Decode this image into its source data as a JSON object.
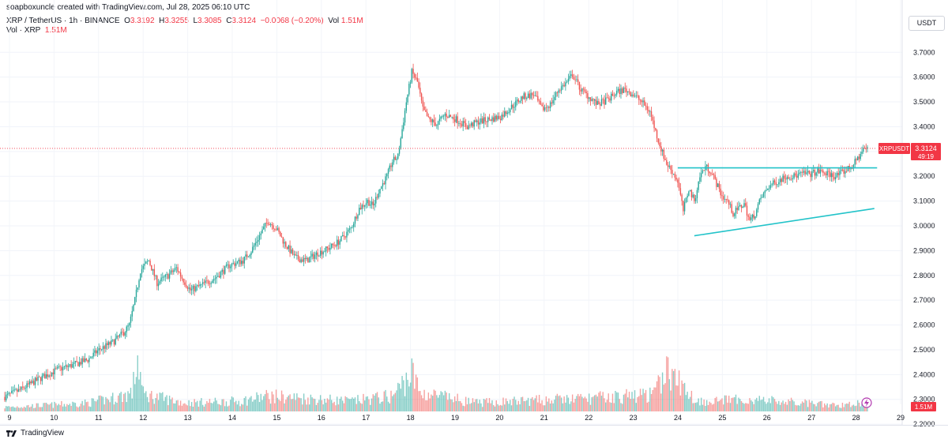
{
  "header": {
    "credit": "soapboxuncle created with TradingView.com, Jul 28, 2025 06:10 UTC",
    "symbol_line": "XRP / TetherUS · 1h · BINANCE",
    "open_label": "O",
    "open": "3.3192",
    "high_label": "H",
    "high": "3.3255",
    "low_label": "L",
    "low": "3.3085",
    "close_label": "C",
    "close": "3.3124",
    "change": "−0.0068 (−0.20%)",
    "vol_label": "Vol",
    "vol_value": "1.51M",
    "vol_line_label": "Vol · XRP",
    "vol_line_value": "1.51M"
  },
  "currency": "USDT",
  "footer": {
    "brand": "TradingView"
  },
  "colors": {
    "up": "#26a69a",
    "down": "#ef5350",
    "trendline": "#22c3c9",
    "price_tag": "#f23645"
  },
  "chart_data": {
    "type": "candlestick",
    "ylim": [
      2.28,
      3.72
    ],
    "y_ticks": [
      "3.7000",
      "3.6000",
      "3.5000",
      "3.4000",
      "3.3000",
      "3.2000",
      "3.1000",
      "3.0000",
      "2.9000",
      "2.8000",
      "2.7000",
      "2.6000",
      "2.5000",
      "2.4000",
      "2.3000",
      "2.2000"
    ],
    "x_ticks": [
      "9",
      "10",
      "11",
      "12",
      "13",
      "14",
      "15",
      "16",
      "17",
      "18",
      "19",
      "20",
      "21",
      "22",
      "23",
      "24",
      "25",
      "26",
      "27",
      "28",
      "29"
    ],
    "anchors": [
      [
        0,
        2.31
      ],
      [
        12,
        2.34
      ],
      [
        24,
        2.38
      ],
      [
        38,
        2.42
      ],
      [
        50,
        2.44
      ],
      [
        60,
        2.46
      ],
      [
        68,
        2.5
      ],
      [
        78,
        2.53
      ],
      [
        86,
        2.57
      ],
      [
        90,
        2.6
      ],
      [
        94,
        2.7
      ],
      [
        98,
        2.82
      ],
      [
        104,
        2.86
      ],
      [
        110,
        2.77
      ],
      [
        118,
        2.8
      ],
      [
        124,
        2.83
      ],
      [
        128,
        2.79
      ],
      [
        134,
        2.74
      ],
      [
        142,
        2.76
      ],
      [
        152,
        2.79
      ],
      [
        162,
        2.84
      ],
      [
        172,
        2.86
      ],
      [
        178,
        2.9
      ],
      [
        186,
        2.98
      ],
      [
        190,
        3.02
      ],
      [
        196,
        2.99
      ],
      [
        202,
        2.93
      ],
      [
        210,
        2.87
      ],
      [
        218,
        2.86
      ],
      [
        226,
        2.89
      ],
      [
        234,
        2.91
      ],
      [
        242,
        2.94
      ],
      [
        250,
        2.99
      ],
      [
        256,
        3.07
      ],
      [
        262,
        3.1
      ],
      [
        266,
        3.08
      ],
      [
        270,
        3.14
      ],
      [
        276,
        3.2
      ],
      [
        280,
        3.26
      ],
      [
        284,
        3.28
      ],
      [
        290,
        3.5
      ],
      [
        294,
        3.62
      ],
      [
        298,
        3.58
      ],
      [
        302,
        3.47
      ],
      [
        306,
        3.43
      ],
      [
        312,
        3.41
      ],
      [
        318,
        3.45
      ],
      [
        326,
        3.43
      ],
      [
        334,
        3.4
      ],
      [
        342,
        3.42
      ],
      [
        350,
        3.43
      ],
      [
        358,
        3.44
      ],
      [
        366,
        3.48
      ],
      [
        374,
        3.52
      ],
      [
        382,
        3.53
      ],
      [
        388,
        3.47
      ],
      [
        394,
        3.49
      ],
      [
        400,
        3.55
      ],
      [
        406,
        3.58
      ],
      [
        410,
        3.61
      ],
      [
        416,
        3.55
      ],
      [
        422,
        3.52
      ],
      [
        428,
        3.49
      ],
      [
        436,
        3.51
      ],
      [
        442,
        3.54
      ],
      [
        448,
        3.55
      ],
      [
        454,
        3.53
      ],
      [
        460,
        3.5
      ],
      [
        466,
        3.46
      ],
      [
        470,
        3.38
      ],
      [
        474,
        3.31
      ],
      [
        478,
        3.25
      ],
      [
        482,
        3.22
      ],
      [
        486,
        3.18
      ],
      [
        490,
        3.06
      ],
      [
        494,
        3.15
      ],
      [
        498,
        3.1
      ],
      [
        502,
        3.2
      ],
      [
        506,
        3.24
      ],
      [
        510,
        3.22
      ],
      [
        514,
        3.17
      ],
      [
        518,
        3.12
      ],
      [
        522,
        3.1
      ],
      [
        526,
        3.05
      ],
      [
        530,
        3.07
      ],
      [
        534,
        3.09
      ],
      [
        538,
        3.02
      ],
      [
        542,
        3.05
      ],
      [
        546,
        3.11
      ],
      [
        552,
        3.16
      ],
      [
        558,
        3.18
      ],
      [
        564,
        3.2
      ],
      [
        570,
        3.2
      ],
      [
        576,
        3.21
      ],
      [
        582,
        3.21
      ],
      [
        588,
        3.22
      ],
      [
        594,
        3.21
      ],
      [
        600,
        3.2
      ],
      [
        606,
        3.22
      ],
      [
        612,
        3.24
      ],
      [
        617,
        3.28
      ],
      [
        620,
        3.31
      ]
    ],
    "volume_anchors": [
      [
        0,
        0.05
      ],
      [
        40,
        0.08
      ],
      [
        60,
        0.1
      ],
      [
        80,
        0.16
      ],
      [
        92,
        0.22
      ],
      [
        96,
        0.62
      ],
      [
        100,
        0.2
      ],
      [
        130,
        0.1
      ],
      [
        170,
        0.12
      ],
      [
        190,
        0.18
      ],
      [
        250,
        0.12
      ],
      [
        280,
        0.18
      ],
      [
        294,
        0.45
      ],
      [
        300,
        0.22
      ],
      [
        340,
        0.1
      ],
      [
        400,
        0.14
      ],
      [
        420,
        0.15
      ],
      [
        470,
        0.2
      ],
      [
        476,
        0.5
      ],
      [
        484,
        0.38
      ],
      [
        500,
        0.12
      ],
      [
        540,
        0.14
      ],
      [
        600,
        0.07
      ],
      [
        620,
        0.1
      ]
    ],
    "last_price_tag": {
      "label": "XRPUSDT",
      "price": "3.3124",
      "timer": "49:19"
    },
    "volume_tag": "1.51M",
    "trendlines": [
      {
        "name": "resistance",
        "from": [
          486,
          3.234
        ],
        "to": [
          630,
          3.234
        ]
      },
      {
        "name": "support",
        "from": [
          498,
          2.96
        ],
        "to": [
          628,
          3.07
        ]
      }
    ]
  }
}
